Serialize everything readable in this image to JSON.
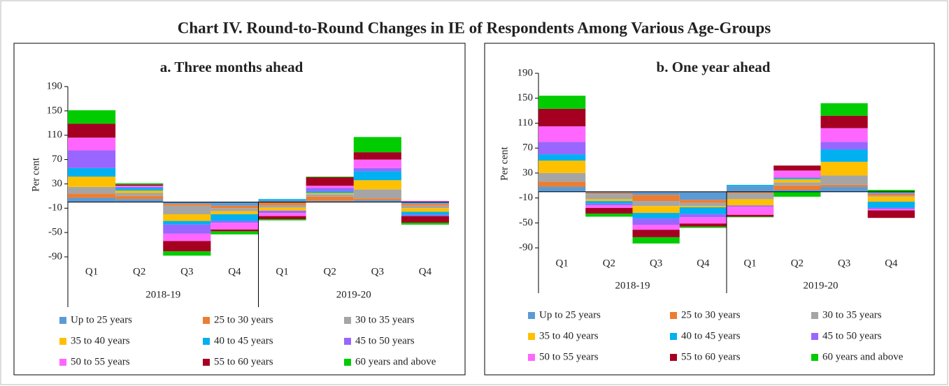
{
  "title": "Chart IV. Round-to-Round Changes in IE of Respondents Among Various Age-Groups",
  "chart_data": [
    {
      "type": "bar",
      "stacked": true,
      "title": "a. Three months ahead",
      "y_label": "Per cent",
      "categories": [
        "Q1",
        "Q2",
        "Q3",
        "Q4",
        "Q1",
        "Q2",
        "Q3",
        "Q4"
      ],
      "group_labels": [
        "2018-19",
        "2019-20"
      ],
      "ylim": [
        -100,
        190
      ],
      "yticks": [
        190,
        150,
        110,
        70,
        30,
        -10,
        -50,
        -90
      ],
      "series": [
        {
          "name": "Up to 25 years",
          "color": "#5b9bd5",
          "values": [
            7,
            5,
            -3,
            -6,
            3,
            2,
            3,
            -3
          ]
        },
        {
          "name": "25 to 30 years",
          "color": "#ed7d31",
          "values": [
            7,
            5,
            -3,
            -4,
            -5,
            7,
            3,
            -3
          ]
        },
        {
          "name": "30 to 35 years",
          "color": "#a5a5a5",
          "values": [
            11,
            5,
            -14,
            -5,
            -4,
            4,
            15,
            -4
          ]
        },
        {
          "name": "35 to 40 years",
          "color": "#ffc000",
          "values": [
            17,
            4,
            -11,
            -5,
            -5,
            2,
            15,
            -6
          ]
        },
        {
          "name": "40 to 45 years",
          "color": "#00b0f0",
          "values": [
            14,
            4,
            -6,
            -11,
            2,
            3,
            15,
            -5
          ]
        },
        {
          "name": "45 to 50 years",
          "color": "#9966ff",
          "values": [
            29,
            2,
            -15,
            -3,
            -4,
            5,
            5,
            -2
          ]
        },
        {
          "name": "50 to 55 years",
          "color": "#ff66ff",
          "values": [
            21,
            2,
            -12,
            -11,
            -5,
            4,
            14,
            2
          ]
        },
        {
          "name": "55 to 60 years",
          "color": "#a50021",
          "values": [
            23,
            2,
            -17,
            -3,
            -5,
            14,
            12,
            -11
          ]
        },
        {
          "name": "60 years and above",
          "color": "#00cc00",
          "values": [
            22,
            2,
            -7,
            -5,
            -2,
            1,
            25,
            -3
          ]
        }
      ]
    },
    {
      "type": "bar",
      "stacked": true,
      "title": "b. One year ahead",
      "y_label": "Per cent",
      "categories": [
        "Q1",
        "Q2",
        "Q3",
        "Q4",
        "Q1",
        "Q2",
        "Q3",
        "Q4"
      ],
      "group_labels": [
        "2018-19",
        "2019-20"
      ],
      "ylim": [
        -100,
        190
      ],
      "yticks": [
        190,
        150,
        110,
        70,
        30,
        -10,
        -50,
        -90
      ],
      "series": [
        {
          "name": "Up to 25 years",
          "color": "#5b9bd5",
          "values": [
            8,
            -2,
            -5,
            -13,
            9,
            3,
            8,
            -3
          ]
        },
        {
          "name": "25 to 30 years",
          "color": "#ed7d31",
          "values": [
            8,
            -2,
            -10,
            -5,
            -2,
            7,
            3,
            -3
          ]
        },
        {
          "name": "30 to 35 years",
          "color": "#a5a5a5",
          "values": [
            14,
            -8,
            -8,
            -5,
            -10,
            5,
            15,
            -2
          ]
        },
        {
          "name": "35 to 40 years",
          "color": "#ffc000",
          "values": [
            20,
            -3,
            -11,
            -2,
            -10,
            5,
            22,
            -8
          ]
        },
        {
          "name": "40 to 45 years",
          "color": "#00b0f0",
          "values": [
            10,
            -4,
            -9,
            -11,
            2,
            2,
            20,
            -10
          ]
        },
        {
          "name": "45 to 50 years",
          "color": "#9966ff",
          "values": [
            20,
            -3,
            -10,
            -5,
            -2,
            1,
            12,
            -2
          ]
        },
        {
          "name": "50 to 55 years",
          "color": "#ff66ff",
          "values": [
            25,
            -4,
            -8,
            -10,
            -13,
            11,
            22,
            -2
          ]
        },
        {
          "name": "55 to 60 years",
          "color": "#a50021",
          "values": [
            28,
            -9,
            -12,
            -5,
            -3,
            8,
            20,
            -12
          ]
        },
        {
          "name": "60 years and above",
          "color": "#00cc00",
          "values": [
            21,
            -5,
            -10,
            -2,
            -1,
            -8,
            20,
            3
          ]
        }
      ]
    }
  ]
}
